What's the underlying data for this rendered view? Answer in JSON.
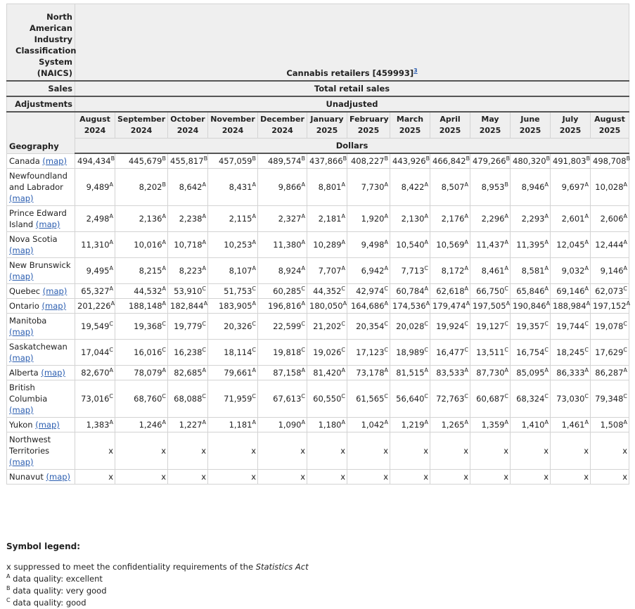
{
  "header": {
    "naics_label": "North American Industry Classification System (NAICS)",
    "naics_value": "Cannabis retailers [459993]",
    "naics_footnote": "3",
    "sales_label": "Sales",
    "sales_value": "Total retail sales",
    "adjustments_label": "Adjustments",
    "adjustments_value": "Unadjusted",
    "geography_label": "Geography",
    "units": "Dollars"
  },
  "columns": [
    {
      "month": "August",
      "year": "2024"
    },
    {
      "month": "September",
      "year": "2024"
    },
    {
      "month": "October",
      "year": "2024"
    },
    {
      "month": "November",
      "year": "2024"
    },
    {
      "month": "December",
      "year": "2024"
    },
    {
      "month": "January",
      "year": "2025"
    },
    {
      "month": "February",
      "year": "2025"
    },
    {
      "month": "March",
      "year": "2025"
    },
    {
      "month": "April",
      "year": "2025"
    },
    {
      "month": "May",
      "year": "2025"
    },
    {
      "month": "June",
      "year": "2025"
    },
    {
      "month": "July",
      "year": "2025"
    },
    {
      "month": "August",
      "year": "2025"
    }
  ],
  "map_link": "(map)",
  "rows": [
    {
      "geography": "Canada",
      "cells": [
        [
          "494,434",
          "B"
        ],
        [
          "445,679",
          "B"
        ],
        [
          "455,817",
          "B"
        ],
        [
          "457,059",
          "B"
        ],
        [
          "489,574",
          "B"
        ],
        [
          "437,866",
          "B"
        ],
        [
          "408,227",
          "B"
        ],
        [
          "443,926",
          "B"
        ],
        [
          "466,842",
          "B"
        ],
        [
          "479,266",
          "B"
        ],
        [
          "480,320",
          "B"
        ],
        [
          "491,803",
          "B"
        ],
        [
          "498,708",
          "B"
        ]
      ]
    },
    {
      "geography": "Newfoundland and Labrador",
      "cells": [
        [
          "9,489",
          "A"
        ],
        [
          "8,202",
          "B"
        ],
        [
          "8,642",
          "A"
        ],
        [
          "8,431",
          "A"
        ],
        [
          "9,866",
          "A"
        ],
        [
          "8,801",
          "A"
        ],
        [
          "7,730",
          "A"
        ],
        [
          "8,422",
          "A"
        ],
        [
          "8,507",
          "A"
        ],
        [
          "8,953",
          "B"
        ],
        [
          "8,946",
          "A"
        ],
        [
          "9,697",
          "A"
        ],
        [
          "10,028",
          "A"
        ]
      ]
    },
    {
      "geography": "Prince Edward Island",
      "cells": [
        [
          "2,498",
          "A"
        ],
        [
          "2,136",
          "A"
        ],
        [
          "2,238",
          "A"
        ],
        [
          "2,115",
          "A"
        ],
        [
          "2,327",
          "A"
        ],
        [
          "2,181",
          "A"
        ],
        [
          "1,920",
          "A"
        ],
        [
          "2,130",
          "A"
        ],
        [
          "2,176",
          "A"
        ],
        [
          "2,296",
          "A"
        ],
        [
          "2,293",
          "A"
        ],
        [
          "2,601",
          "A"
        ],
        [
          "2,606",
          "A"
        ]
      ]
    },
    {
      "geography": "Nova Scotia",
      "cells": [
        [
          "11,310",
          "A"
        ],
        [
          "10,016",
          "A"
        ],
        [
          "10,718",
          "A"
        ],
        [
          "10,253",
          "A"
        ],
        [
          "11,380",
          "A"
        ],
        [
          "10,289",
          "A"
        ],
        [
          "9,498",
          "A"
        ],
        [
          "10,540",
          "A"
        ],
        [
          "10,569",
          "A"
        ],
        [
          "11,437",
          "A"
        ],
        [
          "11,395",
          "A"
        ],
        [
          "12,045",
          "A"
        ],
        [
          "12,444",
          "A"
        ]
      ]
    },
    {
      "geography": "New Brunswick",
      "cells": [
        [
          "9,495",
          "A"
        ],
        [
          "8,215",
          "A"
        ],
        [
          "8,223",
          "A"
        ],
        [
          "8,107",
          "A"
        ],
        [
          "8,924",
          "A"
        ],
        [
          "7,707",
          "A"
        ],
        [
          "6,942",
          "A"
        ],
        [
          "7,713",
          "C"
        ],
        [
          "8,172",
          "A"
        ],
        [
          "8,461",
          "A"
        ],
        [
          "8,581",
          "A"
        ],
        [
          "9,032",
          "A"
        ],
        [
          "9,146",
          "A"
        ]
      ]
    },
    {
      "geography": "Quebec",
      "cells": [
        [
          "65,327",
          "A"
        ],
        [
          "44,532",
          "A"
        ],
        [
          "53,910",
          "C"
        ],
        [
          "51,753",
          "C"
        ],
        [
          "60,285",
          "C"
        ],
        [
          "44,352",
          "C"
        ],
        [
          "42,974",
          "C"
        ],
        [
          "60,784",
          "A"
        ],
        [
          "62,618",
          "A"
        ],
        [
          "66,750",
          "C"
        ],
        [
          "65,846",
          "A"
        ],
        [
          "69,146",
          "A"
        ],
        [
          "62,073",
          "C"
        ]
      ]
    },
    {
      "geography": "Ontario",
      "cells": [
        [
          "201,226",
          "A"
        ],
        [
          "188,148",
          "A"
        ],
        [
          "182,844",
          "A"
        ],
        [
          "183,905",
          "A"
        ],
        [
          "196,816",
          "A"
        ],
        [
          "180,050",
          "A"
        ],
        [
          "164,686",
          "A"
        ],
        [
          "174,536",
          "A"
        ],
        [
          "179,474",
          "A"
        ],
        [
          "197,505",
          "A"
        ],
        [
          "190,846",
          "A"
        ],
        [
          "188,984",
          "A"
        ],
        [
          "197,152",
          "A"
        ]
      ]
    },
    {
      "geography": "Manitoba",
      "cells": [
        [
          "19,549",
          "C"
        ],
        [
          "19,368",
          "C"
        ],
        [
          "19,779",
          "C"
        ],
        [
          "20,326",
          "C"
        ],
        [
          "22,599",
          "C"
        ],
        [
          "21,202",
          "C"
        ],
        [
          "20,354",
          "C"
        ],
        [
          "20,028",
          "C"
        ],
        [
          "19,924",
          "C"
        ],
        [
          "19,127",
          "C"
        ],
        [
          "19,357",
          "C"
        ],
        [
          "19,744",
          "C"
        ],
        [
          "19,078",
          "C"
        ]
      ]
    },
    {
      "geography": "Saskatchewan",
      "cells": [
        [
          "17,044",
          "C"
        ],
        [
          "16,016",
          "C"
        ],
        [
          "16,238",
          "C"
        ],
        [
          "18,114",
          "C"
        ],
        [
          "19,818",
          "C"
        ],
        [
          "19,026",
          "C"
        ],
        [
          "17,123",
          "C"
        ],
        [
          "18,989",
          "C"
        ],
        [
          "16,477",
          "C"
        ],
        [
          "13,511",
          "C"
        ],
        [
          "16,754",
          "C"
        ],
        [
          "18,245",
          "C"
        ],
        [
          "17,629",
          "C"
        ]
      ]
    },
    {
      "geography": "Alberta",
      "cells": [
        [
          "82,670",
          "A"
        ],
        [
          "78,079",
          "A"
        ],
        [
          "82,685",
          "A"
        ],
        [
          "79,661",
          "A"
        ],
        [
          "87,158",
          "A"
        ],
        [
          "81,420",
          "A"
        ],
        [
          "73,178",
          "A"
        ],
        [
          "81,515",
          "A"
        ],
        [
          "83,533",
          "A"
        ],
        [
          "87,730",
          "A"
        ],
        [
          "85,095",
          "A"
        ],
        [
          "86,333",
          "A"
        ],
        [
          "86,287",
          "A"
        ]
      ]
    },
    {
      "geography": "British Columbia",
      "cells": [
        [
          "73,016",
          "C"
        ],
        [
          "68,760",
          "C"
        ],
        [
          "68,088",
          "C"
        ],
        [
          "71,959",
          "C"
        ],
        [
          "67,613",
          "C"
        ],
        [
          "60,550",
          "C"
        ],
        [
          "61,565",
          "C"
        ],
        [
          "56,640",
          "C"
        ],
        [
          "72,763",
          "C"
        ],
        [
          "60,687",
          "C"
        ],
        [
          "68,324",
          "C"
        ],
        [
          "73,030",
          "C"
        ],
        [
          "79,348",
          "C"
        ]
      ]
    },
    {
      "geography": "Yukon",
      "cells": [
        [
          "1,383",
          "A"
        ],
        [
          "1,246",
          "A"
        ],
        [
          "1,227",
          "A"
        ],
        [
          "1,181",
          "A"
        ],
        [
          "1,090",
          "A"
        ],
        [
          "1,180",
          "A"
        ],
        [
          "1,042",
          "A"
        ],
        [
          "1,219",
          "A"
        ],
        [
          "1,265",
          "A"
        ],
        [
          "1,359",
          "A"
        ],
        [
          "1,410",
          "A"
        ],
        [
          "1,461",
          "A"
        ],
        [
          "1,508",
          "A"
        ]
      ]
    },
    {
      "geography": "Northwest Territories",
      "cells": [
        [
          "x"
        ],
        [
          "x"
        ],
        [
          "x"
        ],
        [
          "x"
        ],
        [
          "x"
        ],
        [
          "x"
        ],
        [
          "x"
        ],
        [
          "x"
        ],
        [
          "x"
        ],
        [
          "x"
        ],
        [
          "x"
        ],
        [
          "x"
        ],
        [
          "x"
        ]
      ]
    },
    {
      "geography": "Nunavut",
      "cells": [
        [
          "x"
        ],
        [
          "x"
        ],
        [
          "x"
        ],
        [
          "x"
        ],
        [
          "x"
        ],
        [
          "x"
        ],
        [
          "x"
        ],
        [
          "x"
        ],
        [
          "x"
        ],
        [
          "x"
        ],
        [
          "x"
        ],
        [
          "x"
        ],
        [
          "x"
        ]
      ]
    }
  ],
  "legend": {
    "title": "Symbol legend:",
    "items": [
      {
        "symbol": "x",
        "text": "suppressed to meet the confidentiality requirements of the",
        "emphasis": "Statistics Act"
      },
      {
        "symbol": "A",
        "text": "data quality: excellent"
      },
      {
        "symbol": "B",
        "text": "data quality: very good"
      },
      {
        "symbol": "C",
        "text": "data quality: good"
      }
    ]
  }
}
